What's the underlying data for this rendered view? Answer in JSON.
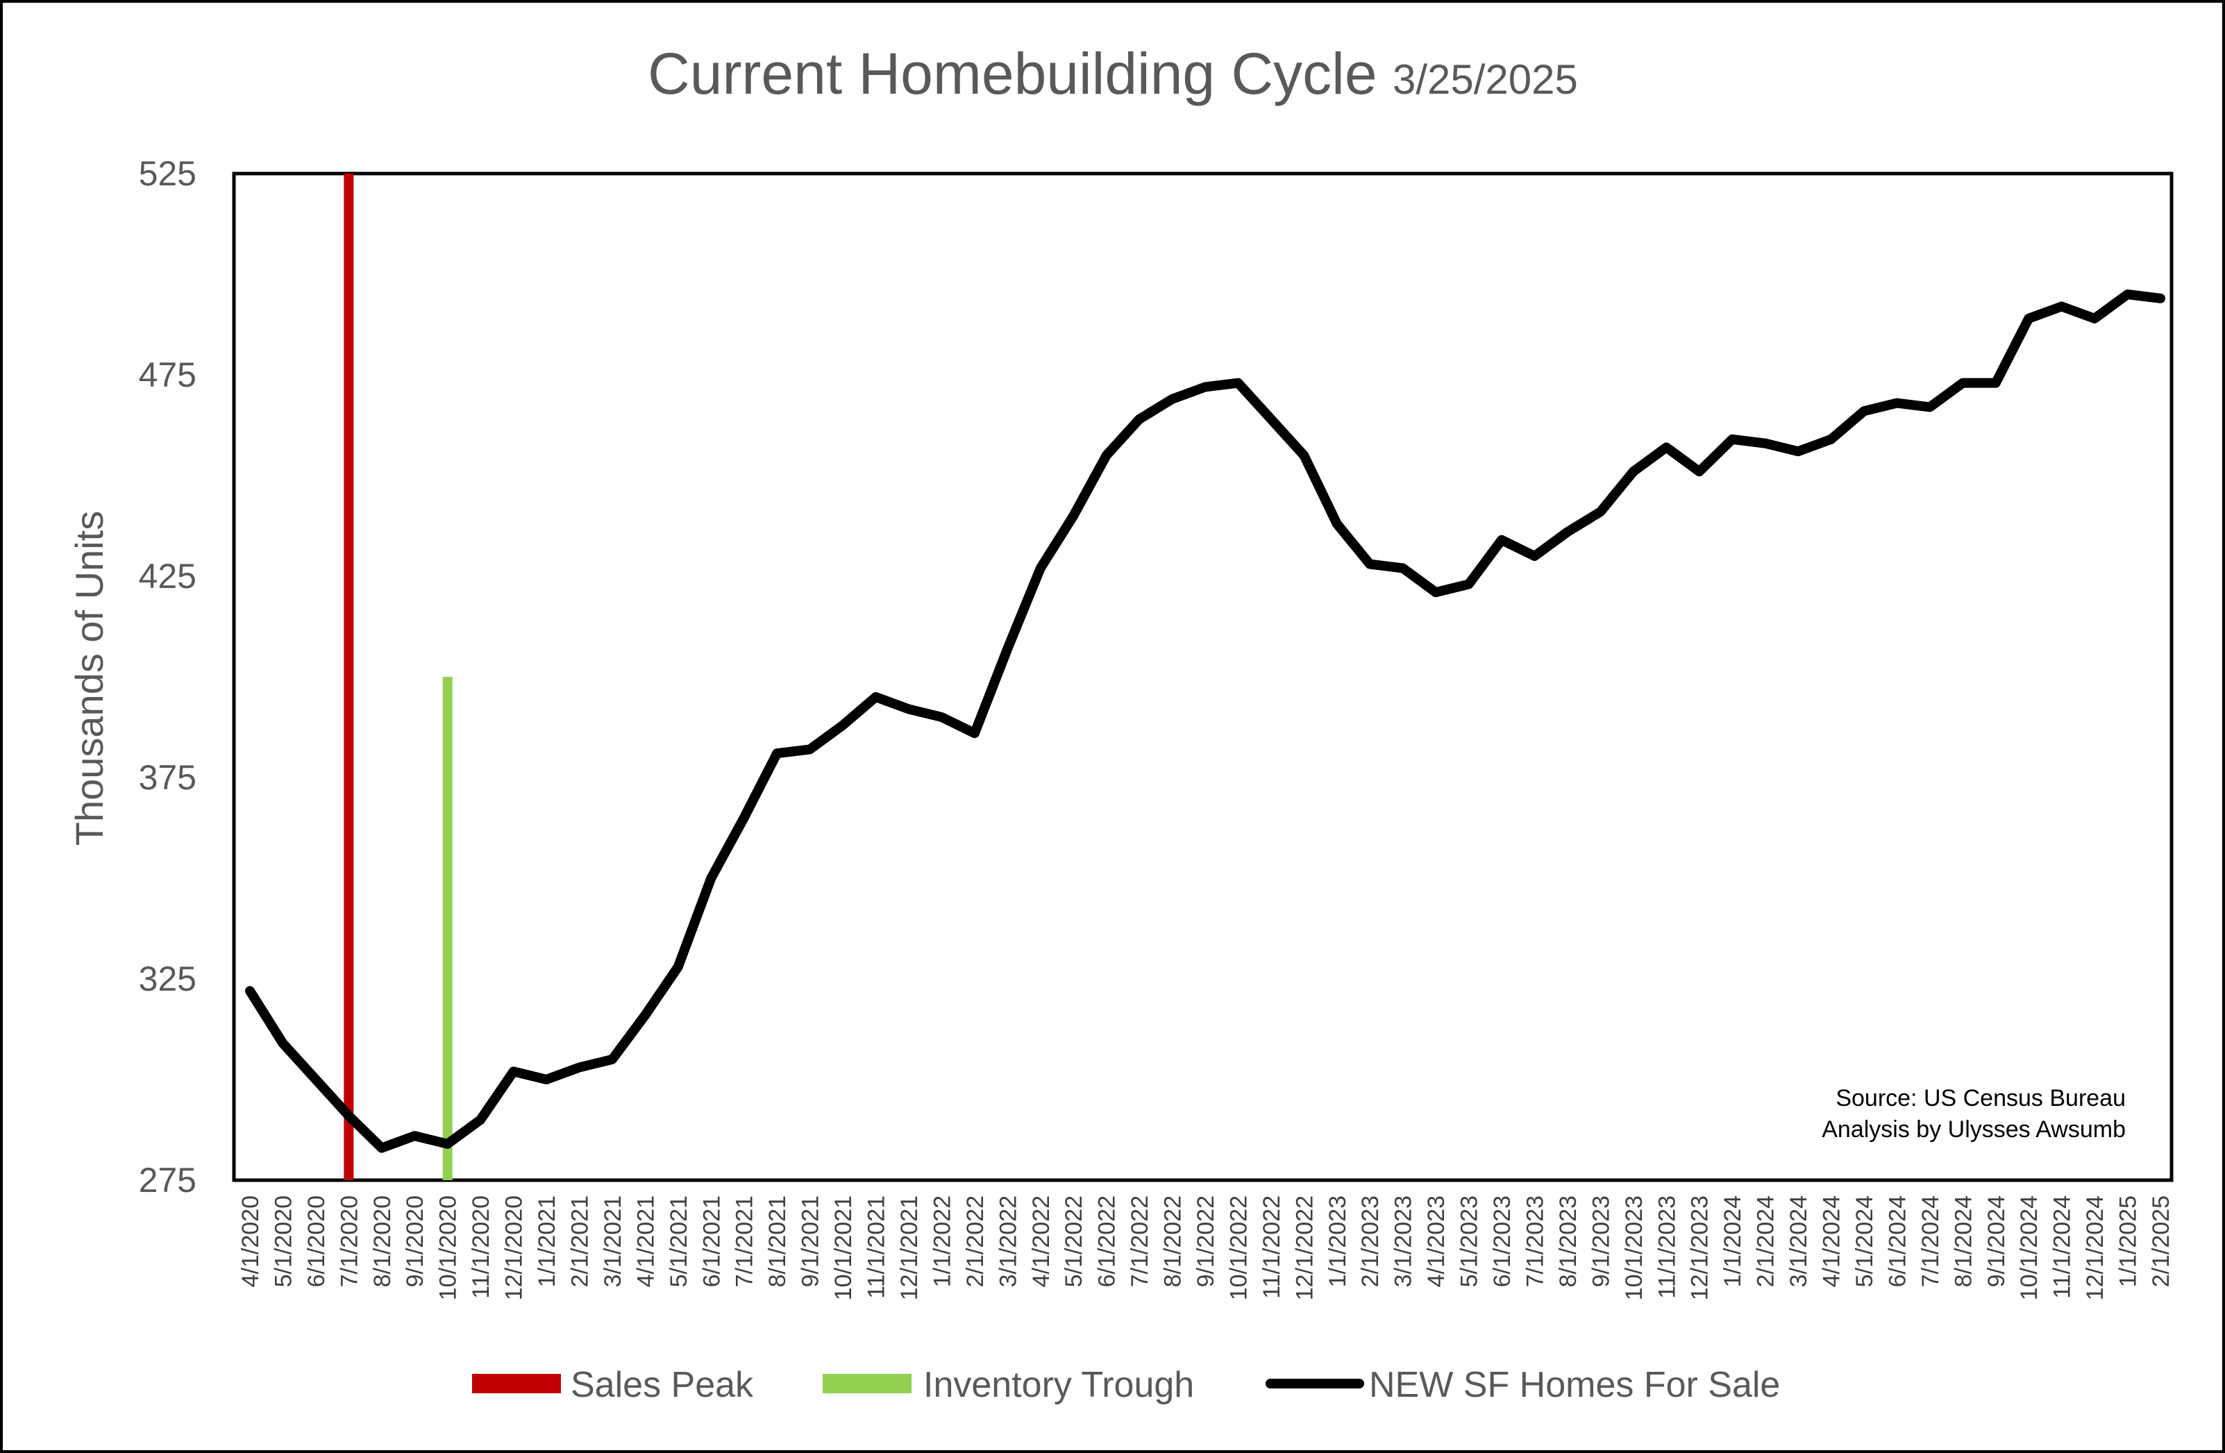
{
  "chart_data": {
    "type": "line",
    "title": "Current Homebuilding Cycle",
    "subtitle": "3/25/2025",
    "ylabel": "Thousands of Units",
    "xlabel": "",
    "ylim": [
      275,
      525
    ],
    "yticks": [
      275,
      325,
      375,
      425,
      475,
      525
    ],
    "grid": false,
    "legend_position": "bottom",
    "x": [
      "4/1/2020",
      "5/1/2020",
      "6/1/2020",
      "7/1/2020",
      "8/1/2020",
      "9/1/2020",
      "10/1/2020",
      "11/1/2020",
      "12/1/2020",
      "1/1/2021",
      "2/1/2021",
      "3/1/2021",
      "4/1/2021",
      "5/1/2021",
      "6/1/2021",
      "7/1/2021",
      "8/1/2021",
      "9/1/2021",
      "10/1/2021",
      "11/1/2021",
      "12/1/2021",
      "1/1/2022",
      "2/1/2022",
      "3/1/2022",
      "4/1/2022",
      "5/1/2022",
      "6/1/2022",
      "7/1/2022",
      "8/1/2022",
      "9/1/2022",
      "10/1/2022",
      "11/1/2022",
      "12/1/2022",
      "1/1/2023",
      "2/1/2023",
      "3/1/2023",
      "4/1/2023",
      "5/1/2023",
      "6/1/2023",
      "7/1/2023",
      "8/1/2023",
      "9/1/2023",
      "10/1/2023",
      "11/1/2023",
      "12/1/2023",
      "1/1/2024",
      "2/1/2024",
      "3/1/2024",
      "4/1/2024",
      "5/1/2024",
      "6/1/2024",
      "7/1/2024",
      "8/1/2024",
      "9/1/2024",
      "10/1/2024",
      "11/1/2024",
      "12/1/2024",
      "1/1/2025",
      "2/1/2025"
    ],
    "series": [
      {
        "name": "NEW SF Homes For Sale",
        "color": "#000000",
        "values": [
          322,
          309,
          300,
          291,
          283,
          286,
          284,
          290,
          302,
          300,
          303,
          305,
          316,
          328,
          350,
          365,
          381,
          382,
          388,
          395,
          392,
          390,
          386,
          407,
          427,
          440,
          455,
          464,
          469,
          472,
          473,
          464,
          455,
          438,
          428,
          427,
          421,
          423,
          434,
          430,
          436,
          441,
          451,
          457,
          451,
          459,
          458,
          456,
          459,
          466,
          468,
          467,
          473,
          473,
          489,
          492,
          489,
          495,
          494
        ]
      }
    ],
    "markers": [
      {
        "name": "Sales Peak",
        "x": "7/1/2020",
        "color": "#C00000",
        "y_top": 525
      },
      {
        "name": "Inventory Trough",
        "x": "10/1/2020",
        "color": "#92D050",
        "y_top": 400
      }
    ],
    "legend": [
      "Sales Peak",
      "Inventory Trough",
      "NEW SF Homes For Sale"
    ],
    "annotations": [
      "Source: US Census Bureau",
      "Analysis by Ulysses Awsumb"
    ]
  }
}
